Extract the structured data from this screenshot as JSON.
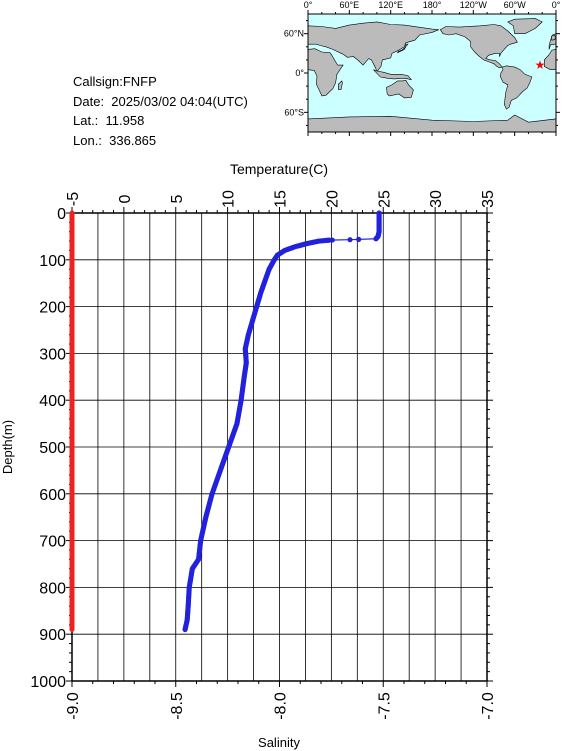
{
  "station": {
    "callsign": "Callsign:FNFP",
    "date": "Date:  2025/03/02 04:04(UTC)",
    "lat": "Lat.:  11.958",
    "lon": "Lon.:  336.865"
  },
  "map": {
    "lon_ticks": [
      "0°",
      "60°E",
      "120°E",
      "180°",
      "120°W",
      "60°W",
      "0°"
    ],
    "lat_ticks": [
      "60°N",
      "0°",
      "60°S"
    ],
    "station_marker": {
      "lon": 336.865,
      "lat": 11.958,
      "color": "#ff0000"
    },
    "ocean_color": "#ccffff",
    "land_color": "#bbbbbb"
  },
  "chart_data": {
    "type": "scatter",
    "xlabel_top": "Temperature(C)",
    "xlabel_bottom": "Salinity",
    "ylabel": "Depth(m)",
    "temperature_ticks": [
      "-5",
      "0",
      "5",
      "10",
      "15",
      "20",
      "25",
      "30",
      "35"
    ],
    "temperature_range": [
      -5,
      35
    ],
    "salinity_ticks": [
      "-9.0",
      "-8.5",
      "-8.0",
      "-7.5",
      "-7.0"
    ],
    "salinity_range": [
      -9.0,
      -7.0
    ],
    "depth_ticks": [
      "0",
      "100",
      "200",
      "300",
      "400",
      "500",
      "600",
      "700",
      "800",
      "900",
      "1000"
    ],
    "depth_range": [
      0,
      1000
    ],
    "grid": true,
    "series": [
      {
        "name": "Temperature",
        "color": "#2222dd",
        "points": [
          [
            24.6,
            0
          ],
          [
            24.6,
            10
          ],
          [
            24.6,
            20
          ],
          [
            24.6,
            30
          ],
          [
            24.6,
            40
          ],
          [
            24.5,
            50
          ],
          [
            24.3,
            55
          ],
          [
            21.8,
            57
          ],
          [
            19.8,
            58
          ],
          [
            18.8,
            60
          ],
          [
            17.7,
            65
          ],
          [
            16.5,
            72
          ],
          [
            15.5,
            80
          ],
          [
            14.8,
            90
          ],
          [
            14.5,
            100
          ],
          [
            14.0,
            120
          ],
          [
            13.6,
            145
          ],
          [
            13.2,
            170
          ],
          [
            12.8,
            200
          ],
          [
            12.4,
            230
          ],
          [
            12.0,
            260
          ],
          [
            11.7,
            290
          ],
          [
            11.8,
            320
          ],
          [
            11.6,
            350
          ],
          [
            11.3,
            400
          ],
          [
            10.9,
            450
          ],
          [
            10.1,
            500
          ],
          [
            9.3,
            550
          ],
          [
            8.5,
            600
          ],
          [
            7.9,
            650
          ],
          [
            7.4,
            700
          ],
          [
            7.2,
            740
          ],
          [
            6.6,
            760
          ],
          [
            6.3,
            800
          ],
          [
            6.2,
            840
          ],
          [
            6.1,
            870
          ],
          [
            5.9,
            890
          ]
        ]
      },
      {
        "name": "Salinity",
        "color": "#ee2222",
        "points": [
          [
            -9.0,
            0
          ],
          [
            -9.0,
            100
          ],
          [
            -9.0,
            200
          ],
          [
            -9.0,
            300
          ],
          [
            -9.0,
            400
          ],
          [
            -9.0,
            500
          ],
          [
            -9.0,
            600
          ],
          [
            -9.0,
            700
          ],
          [
            -9.0,
            800
          ],
          [
            -9.0,
            890
          ]
        ]
      }
    ]
  }
}
